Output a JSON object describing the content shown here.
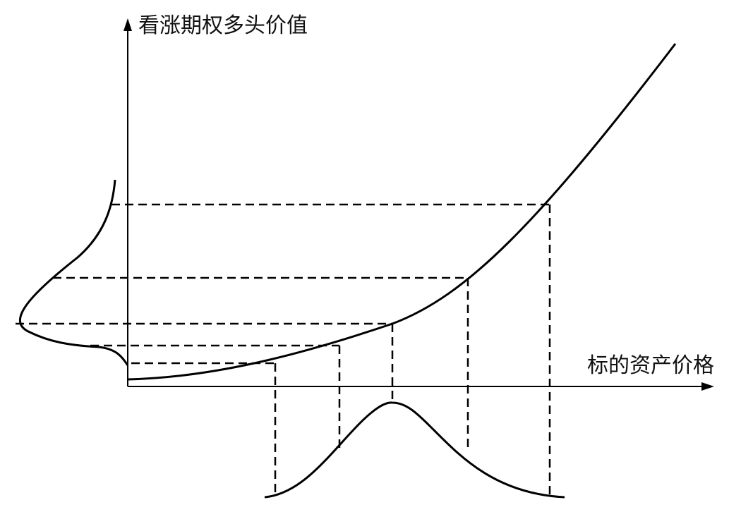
{
  "axes": {
    "y_label": "看涨期权多头价值",
    "x_label": "标的资产价格"
  }
}
